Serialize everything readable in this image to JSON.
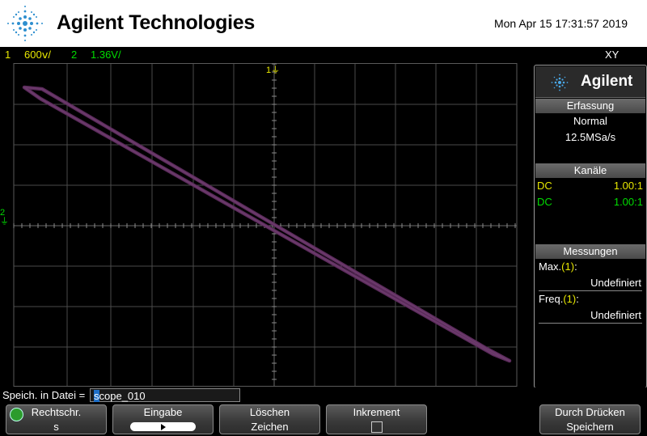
{
  "header": {
    "brand": "Agilent Technologies",
    "datetime": "Mon Apr 15 17:31:57 2019"
  },
  "status": {
    "ch1_num": "1",
    "ch1_scale": "600ⅴ/",
    "ch2_num": "2",
    "ch2_scale": "1.36V/",
    "mode": "XY"
  },
  "screen": {
    "ch1_marker": "1",
    "ch2_marker": "2",
    "trace_color": "#5a2a5a"
  },
  "panel": {
    "brand": "Agilent",
    "acquisition": {
      "title": "Erfassung",
      "mode": "Normal",
      "rate": "12.5MSa/s"
    },
    "channels": {
      "title": "Kanäle",
      "rows": [
        {
          "coupling": "DC",
          "ratio": "1.00:1",
          "color": "#e8e800"
        },
        {
          "coupling": "DC",
          "ratio": "1.00:1",
          "color": "#00dd00"
        }
      ]
    },
    "measurements": {
      "title": "Messungen",
      "items": [
        {
          "label": "Max.",
          "channel": "(1)",
          "suffix": ":",
          "value": "Undefiniert"
        },
        {
          "label": "Freq.",
          "channel": "(1)",
          "suffix": ":",
          "value": "Undefiniert"
        }
      ]
    }
  },
  "filebar": {
    "label": "Speich. in Datei =",
    "filename_first": "s",
    "filename_rest": "cope_010"
  },
  "softkeys": {
    "k1": {
      "line1": "Rechtschr.",
      "line2": "s"
    },
    "k2": {
      "line1": "Eingabe"
    },
    "k3": {
      "line1": "Löschen",
      "line2": "Zeichen"
    },
    "k4": {
      "line1": "Inkrement"
    },
    "k5": {
      "line1": "Durch Drücken",
      "line2": "Speichern"
    }
  }
}
